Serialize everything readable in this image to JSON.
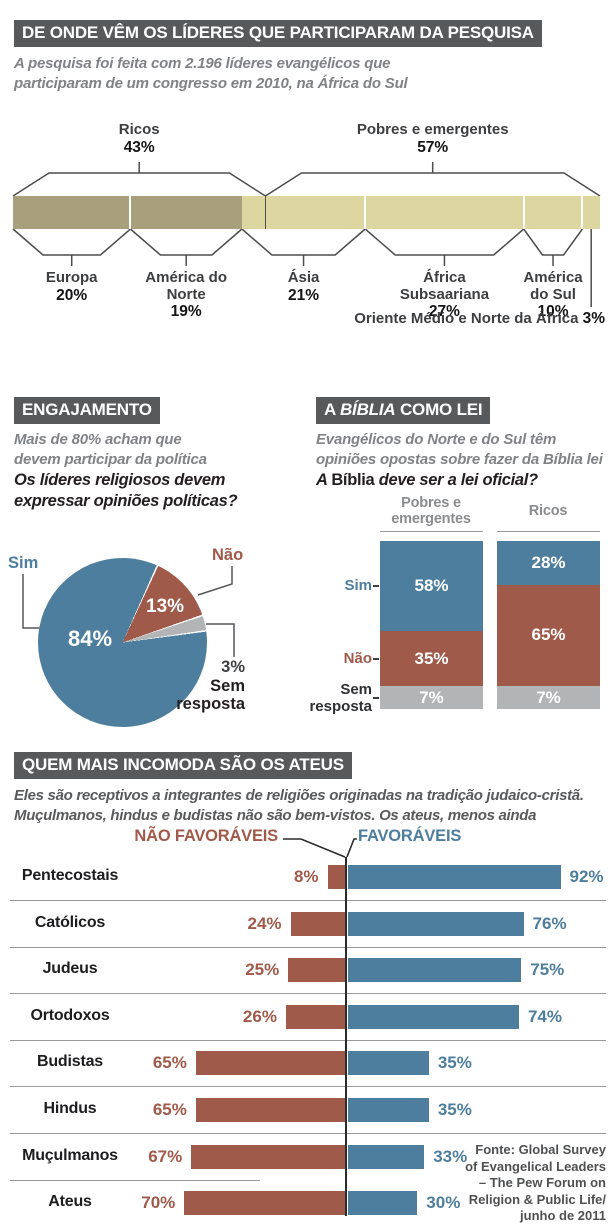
{
  "page": {
    "background": "#ffffff"
  },
  "colors": {
    "header_bg": "#58595b",
    "header_text": "#ffffff",
    "subtitle_gray": "#808285",
    "text_dark": "#231f20",
    "khaki_dark": "#a8a07c",
    "khaki_light": "#ded6a0",
    "blue": "#4e7e9d",
    "red": "#a05a4a",
    "gray": "#b3b4b6",
    "line": "#4d4d4f",
    "separator": "#9b9b9b"
  },
  "sections": {
    "origin": {
      "title": "DE ONDE VÊM OS LÍDERES QUE PARTICIPARAM DA PESQUISA",
      "subtitle": "A pesquisa foi feita com 2.196 líderes evangélicos que\nparticiparam de um congresso em 2010, na África do Sul"
    },
    "engagement": {
      "title": "ENGAJAMENTO",
      "subtitle": "Mais de 80% acham que\ndevem participar da política",
      "question": "Os líderes religiosos devem\nexpressar opiniões políticas?"
    },
    "bible": {
      "title_prefix": "A",
      "title_italic": "BÍBLIA",
      "title_suffix": "COMO LEI",
      "subtitle": "Evangélicos do Norte e do Sul têm\nopiniões opostas sobre fazer da Bíblia lei",
      "question_prefix": "A",
      "question_name": "Bíblia",
      "question_suffix": "deve ser a lei oficial?"
    },
    "atheists": {
      "title": "QUEM MAIS INCOMODA SÃO OS ATEUS",
      "subtitle": "Eles são receptivos a integrantes de religiões originadas na tradição judaico-cristã.\nMuçulmanos, hindus e budistas não são bem-vistos. Os ateus, menos ainda",
      "source": "Fonte: Global Survey\nof Evangelical Leaders\n– The Pew Forum on\nReligion & Public Life/\njunho de 2011"
    }
  },
  "chart_data": [
    {
      "type": "bar",
      "variant": "stacked-horizontal-100pct",
      "title": "DE ONDE VÊM OS LÍDERES QUE PARTICIPARAM DA PESQUISA",
      "groups": [
        {
          "label": "Ricos",
          "value": 43
        },
        {
          "label": "Pobres e emergentes",
          "value": 57
        }
      ],
      "segments": [
        {
          "label": "Europa",
          "display": "Europa",
          "value": 20,
          "group": 0
        },
        {
          "label": "América do Norte",
          "display": "América do\nNorte",
          "value": 19,
          "group": 0
        },
        {
          "label": "Ásia",
          "display": "Ásia",
          "value": 21,
          "group": 1
        },
        {
          "label": "África Subsaariana",
          "display": "África\nSubsaariana",
          "value": 27,
          "group": 1
        },
        {
          "label": "América do Sul",
          "display": "América\ndo Sul",
          "value": 10,
          "group": 1
        },
        {
          "label": "Oriente Médio e Norte da África",
          "display": "Oriente Médio e Norte da África",
          "value": 3,
          "group": 1,
          "callout": true
        }
      ]
    },
    {
      "type": "pie",
      "title": "ENGAJAMENTO",
      "question": "Os líderes religiosos devem expressar opiniões políticas?",
      "slices": [
        {
          "label": "Sim",
          "value": 84,
          "color": "#4e7e9d"
        },
        {
          "label": "Não",
          "value": 13,
          "color": "#a05a4a"
        },
        {
          "label": "Sem resposta",
          "value": 3,
          "color": "#b3b4b6"
        }
      ]
    },
    {
      "type": "bar",
      "variant": "stacked-columns-100pct",
      "title": "A BÍBLIA COMO LEI",
      "question": "A Bíblia deve ser a lei oficial?",
      "categories": [
        "Pobres e\nemergentes",
        "Ricos"
      ],
      "series": [
        {
          "name": "Sim",
          "values": [
            58,
            28
          ],
          "color": "#4e7e9d"
        },
        {
          "name": "Não",
          "values": [
            35,
            65
          ],
          "color": "#a05a4a"
        },
        {
          "name": "Sem resposta",
          "values": [
            7,
            7
          ],
          "color": "#b3b4b6"
        }
      ]
    },
    {
      "type": "bar",
      "variant": "diverging-horizontal",
      "title": "QUEM MAIS INCOMODA SÃO OS ATEUS",
      "categories": [
        "Pentecostais",
        "Católicos",
        "Judeus",
        "Ortodoxos",
        "Budistas",
        "Hindus",
        "Muçulmanos",
        "Ateus"
      ],
      "series": [
        {
          "name": "NÃO FAVORÁVEIS",
          "values": [
            8,
            24,
            25,
            26,
            65,
            65,
            67,
            70
          ],
          "color": "#a05a4a"
        },
        {
          "name": "FAVORÁVEIS",
          "values": [
            92,
            76,
            75,
            74,
            35,
            35,
            33,
            30
          ],
          "color": "#4e7e9d"
        }
      ]
    }
  ]
}
